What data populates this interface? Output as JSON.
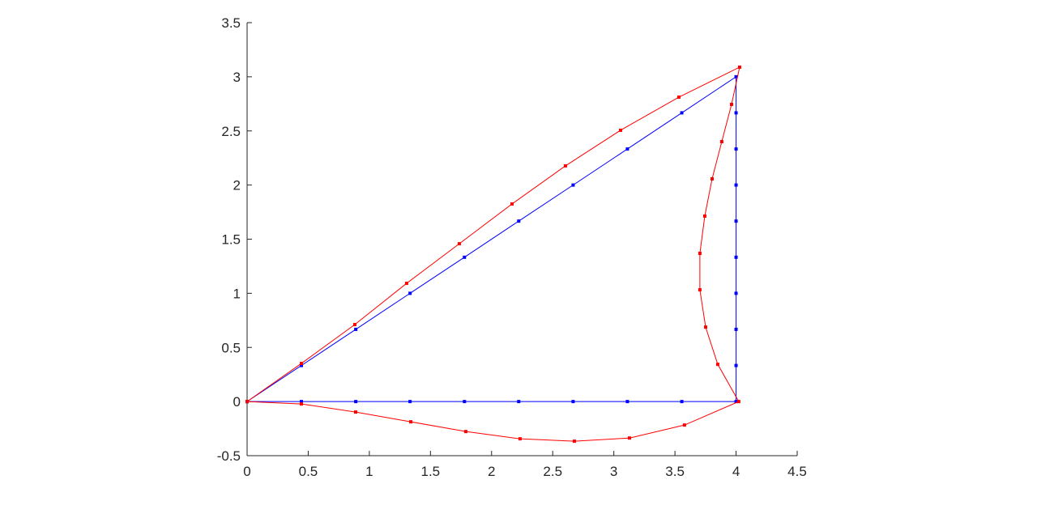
{
  "chart_data": {
    "type": "line",
    "title": "",
    "xlabel": "",
    "ylabel": "",
    "xlim": [
      0,
      4.5
    ],
    "ylim": [
      -0.5,
      3.5
    ],
    "xticks": [
      "0",
      "0.5",
      "1",
      "1.5",
      "2",
      "2.5",
      "3",
      "3.5",
      "4",
      "4.5"
    ],
    "yticks": [
      "-0.5",
      "0",
      "0.5",
      "1",
      "1.5",
      "2",
      "2.5",
      "3",
      "3.5"
    ],
    "grid": false,
    "series": [
      {
        "color": "#0000ff",
        "marker": "square",
        "x": [
          0,
          0.444,
          0.889,
          1.333,
          1.778,
          2.222,
          2.667,
          3.111,
          3.556,
          4,
          4,
          4,
          4,
          4,
          4,
          4,
          4,
          4,
          4,
          3.556,
          3.111,
          2.667,
          2.222,
          1.778,
          1.333,
          0.889,
          0.444,
          0
        ],
        "y": [
          0,
          0,
          0,
          0,
          0,
          0,
          0,
          0,
          0,
          0,
          0.333,
          0.667,
          1,
          1.333,
          1.667,
          2,
          2.333,
          2.667,
          3,
          2.667,
          2.333,
          2,
          1.667,
          1.333,
          1,
          0.667,
          0.333,
          0
        ]
      },
      {
        "color": "#ff0000",
        "marker": "square",
        "x": [
          0,
          0.444,
          0.888,
          1.339,
          1.789,
          2.233,
          2.677,
          3.128,
          3.578,
          4.022,
          3.85,
          3.751,
          3.704,
          3.704,
          3.744,
          3.804,
          3.883,
          3.963,
          4.029,
          3.532,
          3.055,
          2.604,
          2.167,
          1.736,
          1.305,
          0.881,
          0.444,
          0
        ],
        "y": [
          0,
          -0.022,
          -0.097,
          -0.187,
          -0.277,
          -0.344,
          -0.366,
          -0.337,
          -0.217,
          0,
          0.344,
          0.688,
          1.032,
          1.369,
          1.713,
          2.057,
          2.401,
          2.745,
          3.089,
          2.812,
          2.506,
          2.177,
          1.825,
          1.458,
          1.092,
          0.711,
          0.352,
          0
        ]
      }
    ]
  }
}
